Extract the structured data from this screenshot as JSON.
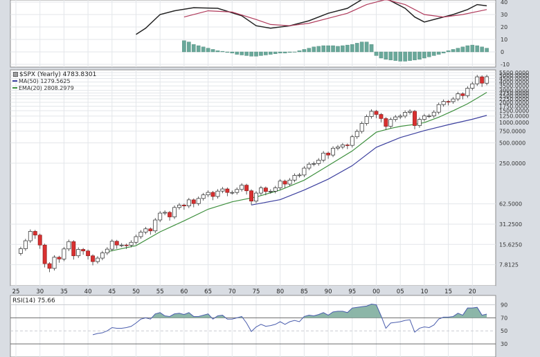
{
  "chart_data": [
    {
      "type": "line",
      "panel": "MACD",
      "title": "",
      "xlabel": "",
      "ylabel": "",
      "ylim": [
        -10,
        40
      ],
      "y_ticks": [
        "40",
        "30",
        "20",
        "10",
        "0",
        "-10"
      ],
      "series": [
        {
          "color": "#222222",
          "x": [
            1950,
            1952,
            1955,
            1958,
            1962,
            1967,
            1972,
            1975,
            1978,
            1982,
            1986,
            1990,
            1994,
            1997,
            2000,
            2003,
            2006,
            2008,
            2010,
            2013,
            2016,
            2019,
            2021,
            2023
          ],
          "values": [
            14,
            19,
            30,
            33,
            35.5,
            35,
            29,
            21,
            19,
            21,
            25,
            31,
            35,
            42,
            52,
            41,
            35,
            28,
            24,
            27,
            30,
            34,
            38,
            37
          ]
        },
        {
          "color": "#b03a5b",
          "x": [
            1960,
            1965,
            1970,
            1975,
            1978,
            1982,
            1986,
            1990,
            1994,
            1998,
            2002,
            2006,
            2010,
            2014,
            2018,
            2023
          ],
          "values": [
            28,
            33,
            32,
            26,
            22,
            21,
            23,
            27,
            31,
            38,
            42,
            38,
            30,
            28,
            30,
            34
          ]
        }
      ],
      "histogram": {
        "color": "#6aa89a",
        "x": [
          1960,
          1961,
          1962,
          1963,
          1964,
          1965,
          1966,
          1967,
          1968,
          1969,
          1970,
          1971,
          1972,
          1973,
          1974,
          1975,
          1976,
          1977,
          1978,
          1979,
          1980,
          1981,
          1982,
          1983,
          1984,
          1985,
          1986,
          1987,
          1988,
          1989,
          1990,
          1991,
          1992,
          1993,
          1994,
          1995,
          1996,
          1997,
          1998,
          1999,
          2000,
          2001,
          2002,
          2003,
          2004,
          2005,
          2006,
          2007,
          2008,
          2009,
          2010,
          2011,
          2012,
          2013,
          2014,
          2015,
          2016,
          2017,
          2018,
          2019,
          2020,
          2021,
          2022,
          2023
        ],
        "values": [
          9,
          8,
          6,
          5,
          4,
          3,
          2,
          1,
          0.5,
          -0.5,
          -1,
          -2,
          -2.5,
          -3,
          -3.5,
          -3.5,
          -3,
          -2.5,
          -2,
          -1.5,
          -1,
          -1,
          -0.5,
          0,
          1,
          2,
          3,
          4,
          4.5,
          5,
          5,
          5,
          4.5,
          5,
          5.5,
          6,
          7,
          8,
          8,
          6,
          -3,
          -5,
          -6,
          -6.5,
          -7,
          -7.5,
          -7.5,
          -7,
          -6.5,
          -6,
          -5,
          -4,
          -3,
          -2,
          -1,
          1,
          2,
          3,
          4,
          5,
          5.5,
          5,
          4,
          3
        ]
      }
    },
    {
      "type": "candlestick",
      "panel": "price",
      "title": "",
      "xlabel": "",
      "ylabel": "",
      "y_scale": "log",
      "ylim": [
        4,
        5500
      ],
      "y_ticks": [
        "5500.0000",
        "5000.0000",
        "4500.0000",
        "4000.0000",
        "3500.0000",
        "3000.0000",
        "2750.0000",
        "2500.0000",
        "2250.0000",
        "2000.0000",
        "1750.0000",
        "1500.0000",
        "1250.0000",
        "1000.0000",
        "750.0000",
        "500.0000",
        "250.0000",
        "62.5000",
        "31.2500",
        "15.6250",
        "7.8125"
      ],
      "x_ticks": [
        "25",
        "30",
        "35",
        "40",
        "45",
        "50",
        "55",
        "60",
        "65",
        "70",
        "75",
        "80",
        "85",
        "90",
        "95",
        "00",
        "05",
        "10",
        "15",
        "20"
      ],
      "x_tick_years": [
        1925,
        1930,
        1935,
        1940,
        1945,
        1950,
        1955,
        1960,
        1965,
        1970,
        1975,
        1980,
        1985,
        1990,
        1995,
        2000,
        2005,
        2010,
        2015,
        2020
      ],
      "legend": {
        "symbol": "$SPX (Yearly) 4783.8301",
        "ma_label": "MA(50) 1279.5625",
        "ema_label": "EMA(20) 2808.2979"
      },
      "price_series": {
        "x": [
          1926,
          1927,
          1928,
          1929,
          1930,
          1931,
          1932,
          1933,
          1934,
          1935,
          1936,
          1937,
          1938,
          1939,
          1940,
          1941,
          1942,
          1943,
          1944,
          1945,
          1946,
          1947,
          1948,
          1949,
          1950,
          1951,
          1952,
          1953,
          1954,
          1955,
          1956,
          1957,
          1958,
          1959,
          1960,
          1961,
          1962,
          1963,
          1964,
          1965,
          1966,
          1967,
          1968,
          1969,
          1970,
          1971,
          1972,
          1973,
          1974,
          1975,
          1976,
          1977,
          1978,
          1979,
          1980,
          1981,
          1982,
          1983,
          1984,
          1985,
          1986,
          1987,
          1988,
          1989,
          1990,
          1991,
          1992,
          1993,
          1994,
          1995,
          1996,
          1997,
          1998,
          1999,
          2000,
          2001,
          2002,
          2003,
          2004,
          2005,
          2006,
          2007,
          2008,
          2009,
          2010,
          2011,
          2012,
          2013,
          2014,
          2015,
          2016,
          2017,
          2018,
          2019,
          2020,
          2021,
          2022,
          2023
        ],
        "close": [
          13.5,
          17.7,
          24.4,
          21.5,
          15.3,
          8.1,
          6.9,
          10.1,
          9.5,
          13.4,
          17.2,
          10.6,
          13.2,
          12.5,
          10.6,
          8.7,
          9.8,
          11.7,
          13.3,
          17.4,
          15.3,
          15.3,
          15.2,
          16.8,
          20.4,
          23.8,
          26.6,
          24.8,
          35.98,
          45.5,
          46.7,
          39.99,
          55.2,
          59.9,
          58.1,
          71.55,
          63.1,
          75.0,
          84.75,
          92.4,
          80.3,
          96.5,
          103.9,
          92.1,
          92.2,
          102.1,
          118.05,
          97.55,
          68.56,
          90.19,
          107.5,
          95.1,
          96.1,
          107.9,
          135.8,
          122.6,
          140.6,
          164.9,
          167.2,
          211.3,
          242.2,
          247.1,
          277.7,
          353.4,
          330.2,
          417.1,
          435.7,
          466.5,
          459.3,
          615.9,
          740.7,
          970.4,
          1229.2,
          1469.3,
          1320.3,
          1148.1,
          879.8,
          1111.9,
          1211.9,
          1248.3,
          1418.3,
          1468.4,
          903.3,
          1115.1,
          1257.6,
          1257.6,
          1426.2,
          1848.4,
          2058.9,
          2043.9,
          2238.8,
          2673.6,
          2506.9,
          3230.8,
          3756.1,
          4766.2,
          3839.5,
          4783.8
        ]
      },
      "series": [
        {
          "name": "MA(50)",
          "color": "#3b3f9e",
          "x": [
            1974,
            1980,
            1985,
            1990,
            1995,
            2000,
            2005,
            2010,
            2015,
            2020,
            2023
          ],
          "values": [
            60,
            72,
            100,
            145,
            230,
            430,
            600,
            760,
            930,
            1120,
            1280
          ]
        },
        {
          "name": "EMA(20)",
          "color": "#3d8f3d",
          "x": [
            1944,
            1950,
            1955,
            1960,
            1965,
            1970,
            1975,
            1980,
            1985,
            1990,
            1995,
            2000,
            2003,
            2005,
            2008,
            2010,
            2013,
            2016,
            2019,
            2021,
            2023
          ],
          "values": [
            12.2,
            15,
            24,
            35,
            52,
            67,
            79,
            100,
            140,
            230,
            380,
            720,
            820,
            880,
            940,
            1000,
            1200,
            1500,
            1900,
            2300,
            2808
          ]
        }
      ]
    },
    {
      "type": "line",
      "panel": "RSI",
      "title": "",
      "xlabel": "",
      "ylabel": "",
      "label": "RSI(14) 75.66",
      "ylim": [
        10,
        100
      ],
      "y_ticks": [
        "90",
        "70",
        "50",
        "30"
      ],
      "overbought": 70,
      "oversold": 30,
      "series": [
        {
          "color": "#4a5dad",
          "fill": "#7fae9f",
          "x": [
            1941,
            1942,
            1943,
            1944,
            1945,
            1946,
            1947,
            1948,
            1949,
            1950,
            1951,
            1952,
            1953,
            1954,
            1955,
            1956,
            1957,
            1958,
            1959,
            1960,
            1961,
            1962,
            1963,
            1964,
            1965,
            1966,
            1967,
            1968,
            1969,
            1970,
            1971,
            1972,
            1973,
            1974,
            1975,
            1976,
            1977,
            1978,
            1979,
            1980,
            1981,
            1982,
            1983,
            1984,
            1985,
            1986,
            1987,
            1988,
            1989,
            1990,
            1991,
            1992,
            1993,
            1994,
            1995,
            1996,
            1997,
            1998,
            1999,
            2000,
            2001,
            2002,
            2003,
            2004,
            2005,
            2006,
            2007,
            2008,
            2009,
            2010,
            2011,
            2012,
            2013,
            2014,
            2015,
            2016,
            2017,
            2018,
            2019,
            2020,
            2021,
            2022,
            2023
          ],
          "values": [
            44,
            46,
            47,
            50,
            55,
            54,
            54,
            55,
            57,
            62,
            68,
            70,
            68,
            76,
            78,
            73,
            72,
            76,
            77,
            75,
            78,
            72,
            72,
            74,
            76,
            68,
            73,
            74,
            68,
            68,
            70,
            72,
            62,
            49,
            56,
            60,
            57,
            58,
            60,
            64,
            60,
            64,
            66,
            64,
            72,
            74,
            73,
            75,
            78,
            74,
            79,
            80,
            80,
            78,
            85,
            86,
            87,
            88,
            91,
            90,
            73,
            54,
            62,
            63,
            64,
            66,
            67,
            48,
            54,
            56,
            55,
            59,
            68,
            71,
            71,
            72,
            77,
            74,
            85,
            85,
            86,
            74,
            75.66
          ]
        }
      ]
    }
  ]
}
